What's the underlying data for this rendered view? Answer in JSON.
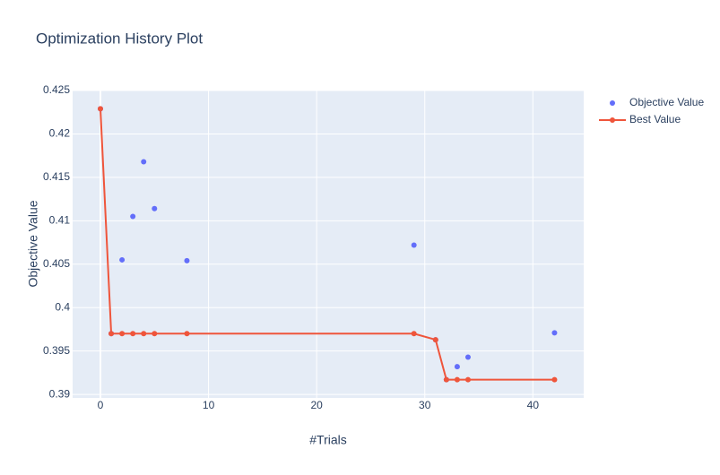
{
  "chart_data": {
    "type": "scatter",
    "title": "Optimization History Plot",
    "x_label": "#Trials",
    "y_label": "Objective Value",
    "x": [
      0,
      1,
      2,
      3,
      4,
      5,
      8,
      29,
      31,
      32,
      33,
      34,
      42
    ],
    "series": [
      {
        "name": "Objective Value",
        "color": "#636efa",
        "mode": "markers",
        "values": [
          0.4229,
          0.397,
          0.4055,
          0.4105,
          0.4168,
          0.4114,
          0.4054,
          0.4072,
          0.3963,
          0.3917,
          0.3932,
          0.3943,
          0.3971
        ]
      },
      {
        "name": "Best Value",
        "color": "#ef553b",
        "mode": "lines+markers",
        "values": [
          0.4229,
          0.397,
          0.397,
          0.397,
          0.397,
          0.397,
          0.397,
          0.397,
          0.3963,
          0.3917,
          0.3917,
          0.3917,
          0.3917
        ]
      }
    ],
    "xlim": [
      -2.57,
      44.7
    ],
    "ylim": [
      0.3896,
      0.425
    ],
    "xticks": [
      0,
      10,
      20,
      30,
      40
    ],
    "yticks": [
      0.39,
      0.395,
      0.4,
      0.405,
      0.41,
      0.415,
      0.42,
      0.425
    ],
    "grid": true,
    "legend": "top-right"
  }
}
